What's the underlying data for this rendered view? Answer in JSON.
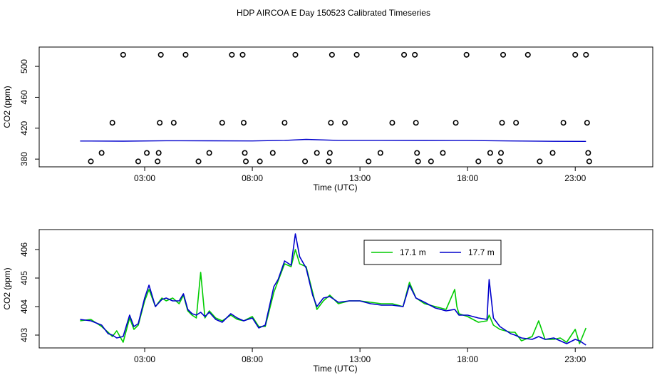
{
  "title": "HDP AIRCOA E  Day 150523  Calibrated Timeseries",
  "colors": {
    "green": "#00cc00",
    "blue": "#0000cc",
    "axis": "#000000"
  },
  "chart_data": [
    {
      "type": "scatter",
      "title": "",
      "xlabel": "Time (UTC)",
      "ylabel": "CO2 (ppm)",
      "xlim": [
        -1.9,
        26.6
      ],
      "ylim": [
        370,
        525
      ],
      "x_ticks": [
        3,
        8,
        13,
        18,
        23
      ],
      "x_tick_labels": [
        "03:00",
        "08:00",
        "13:00",
        "18:00",
        "23:00"
      ],
      "y_ticks": [
        380,
        420,
        460,
        500
      ],
      "y_tick_labels": [
        "380",
        "420",
        "460",
        "500"
      ],
      "series": [
        {
          "name": "flags",
          "marker": "circle-open",
          "points": [
            [
              0.5,
              377
            ],
            [
              1.0,
              388
            ],
            [
              1.5,
              427
            ],
            [
              2.0,
              515
            ],
            [
              2.7,
              377
            ],
            [
              3.1,
              388
            ],
            [
              3.6,
              377
            ],
            [
              3.65,
              388
            ],
            [
              3.7,
              427
            ],
            [
              3.75,
              515
            ],
            [
              4.35,
              427
            ],
            [
              4.9,
              515
            ],
            [
              5.5,
              377
            ],
            [
              6.0,
              388
            ],
            [
              6.6,
              427
            ],
            [
              7.05,
              515
            ],
            [
              7.55,
              515
            ],
            [
              7.6,
              427
            ],
            [
              7.65,
              388
            ],
            [
              7.7,
              377
            ],
            [
              8.35,
              377
            ],
            [
              8.95,
              388
            ],
            [
              9.5,
              427
            ],
            [
              10.0,
              515
            ],
            [
              10.45,
              377
            ],
            [
              11.0,
              388
            ],
            [
              11.55,
              377
            ],
            [
              11.6,
              388
            ],
            [
              11.65,
              427
            ],
            [
              11.7,
              515
            ],
            [
              12.3,
              427
            ],
            [
              12.85,
              515
            ],
            [
              13.4,
              377
            ],
            [
              13.95,
              388
            ],
            [
              14.5,
              427
            ],
            [
              15.05,
              515
            ],
            [
              15.55,
              515
            ],
            [
              15.6,
              427
            ],
            [
              15.65,
              388
            ],
            [
              15.7,
              377
            ],
            [
              16.3,
              377
            ],
            [
              16.85,
              388
            ],
            [
              17.45,
              427
            ],
            [
              17.95,
              515
            ],
            [
              18.5,
              377
            ],
            [
              19.05,
              388
            ],
            [
              19.5,
              377
            ],
            [
              19.55,
              388
            ],
            [
              19.6,
              427
            ],
            [
              19.65,
              515
            ],
            [
              20.25,
              427
            ],
            [
              20.8,
              515
            ],
            [
              21.35,
              377
            ],
            [
              21.95,
              388
            ],
            [
              22.45,
              427
            ],
            [
              23.0,
              515
            ],
            [
              23.5,
              515
            ],
            [
              23.55,
              427
            ],
            [
              23.6,
              388
            ],
            [
              23.65,
              377
            ]
          ]
        },
        {
          "name": "CO2 line",
          "color": "#0000cc",
          "x": [
            0,
            2,
            4,
            6,
            8,
            9.5,
            10.5,
            12,
            14,
            16,
            18,
            20,
            22,
            23.5
          ],
          "values": [
            403.4,
            403.2,
            403.8,
            403.7,
            403.5,
            404.2,
            405.5,
            404.2,
            404.2,
            404.1,
            404.0,
            403.5,
            403.0,
            402.9
          ]
        }
      ]
    },
    {
      "type": "line",
      "title": "",
      "xlabel": "Time (UTC)",
      "ylabel": "CO2 (ppm)",
      "xlim": [
        -1.9,
        26.6
      ],
      "ylim": [
        402.55,
        406.7
      ],
      "x_ticks": [
        3,
        8,
        13,
        18,
        23
      ],
      "x_tick_labels": [
        "03:00",
        "08:00",
        "13:00",
        "18:00",
        "23:00"
      ],
      "y_ticks": [
        403,
        404,
        405,
        406
      ],
      "y_tick_labels": [
        "403",
        "404",
        "405",
        "406"
      ],
      "legend": {
        "position": "top-center",
        "entries": [
          "17.1 m",
          "17.7 m"
        ]
      },
      "series": [
        {
          "name": "17.1 m",
          "color": "#00cc00",
          "x": [
            0,
            0.5,
            1.0,
            1.3,
            1.5,
            1.7,
            2.0,
            2.3,
            2.5,
            2.7,
            3.0,
            3.2,
            3.5,
            3.8,
            4.0,
            4.3,
            4.6,
            4.8,
            5.0,
            5.2,
            5.4,
            5.6,
            5.8,
            6.0,
            6.3,
            6.6,
            7.0,
            7.3,
            7.6,
            8.0,
            8.3,
            8.6,
            9.0,
            9.2,
            9.5,
            9.8,
            10.0,
            10.2,
            10.5,
            10.8,
            11.0,
            11.3,
            11.6,
            12.0,
            12.5,
            13.0,
            13.5,
            14.0,
            14.5,
            15.0,
            15.3,
            15.6,
            16.0,
            16.5,
            17.0,
            17.4,
            17.5,
            17.6,
            18.0,
            18.5,
            18.9,
            19.0,
            19.2,
            19.5,
            20.0,
            20.2,
            20.5,
            21.0,
            21.3,
            21.6,
            22.0,
            22.3,
            22.6,
            23.0,
            23.2,
            23.5
          ],
          "values": [
            403.5,
            403.55,
            403.3,
            403.1,
            402.95,
            403.15,
            402.75,
            403.6,
            403.2,
            403.35,
            404.2,
            404.6,
            404.0,
            404.3,
            404.2,
            404.3,
            404.1,
            404.4,
            403.85,
            403.7,
            403.6,
            405.2,
            403.6,
            403.85,
            403.6,
            403.5,
            403.7,
            403.55,
            403.5,
            403.65,
            403.3,
            403.3,
            404.5,
            404.9,
            405.5,
            405.4,
            406.0,
            405.5,
            405.4,
            404.5,
            403.9,
            404.2,
            404.4,
            404.1,
            404.2,
            404.2,
            404.15,
            404.1,
            404.1,
            404.0,
            404.85,
            404.3,
            404.1,
            404.0,
            403.9,
            404.6,
            404.0,
            403.75,
            403.65,
            403.45,
            403.5,
            403.7,
            403.35,
            403.2,
            403.1,
            403.1,
            402.8,
            402.95,
            403.5,
            402.85,
            402.85,
            402.9,
            402.75,
            403.2,
            402.7,
            403.25
          ]
        },
        {
          "name": "17.7 m",
          "color": "#0000cc",
          "x": [
            0,
            0.5,
            1.0,
            1.3,
            1.5,
            1.7,
            2.0,
            2.3,
            2.5,
            2.7,
            3.0,
            3.2,
            3.5,
            3.8,
            4.0,
            4.3,
            4.6,
            4.8,
            5.0,
            5.2,
            5.4,
            5.6,
            5.8,
            6.0,
            6.3,
            6.6,
            7.0,
            7.3,
            7.6,
            8.0,
            8.3,
            8.6,
            9.0,
            9.2,
            9.5,
            9.8,
            10.0,
            10.2,
            10.5,
            10.8,
            11.0,
            11.3,
            11.6,
            12.0,
            12.5,
            13.0,
            13.5,
            14.0,
            14.5,
            15.0,
            15.3,
            15.6,
            16.0,
            16.5,
            17.0,
            17.4,
            17.5,
            17.6,
            18.0,
            18.5,
            18.9,
            19.0,
            19.2,
            19.5,
            20.0,
            20.2,
            20.5,
            21.0,
            21.3,
            21.6,
            22.0,
            22.3,
            22.6,
            23.0,
            23.2,
            23.5
          ],
          "values": [
            403.55,
            403.5,
            403.35,
            403.05,
            403.0,
            402.9,
            402.95,
            403.7,
            403.3,
            403.4,
            404.3,
            404.75,
            404.0,
            404.25,
            404.3,
            404.2,
            404.2,
            404.45,
            403.9,
            403.75,
            403.7,
            403.8,
            403.65,
            403.8,
            403.55,
            403.45,
            403.75,
            403.6,
            403.5,
            403.6,
            403.25,
            403.35,
            404.7,
            404.95,
            405.6,
            405.45,
            406.55,
            405.75,
            405.35,
            404.4,
            404.0,
            404.3,
            404.35,
            404.15,
            404.2,
            404.2,
            404.1,
            404.05,
            404.05,
            404.0,
            404.75,
            404.3,
            404.15,
            403.95,
            403.85,
            403.9,
            403.8,
            403.7,
            403.7,
            403.6,
            403.55,
            404.95,
            403.6,
            403.3,
            403.05,
            403.0,
            402.9,
            402.85,
            402.95,
            402.85,
            402.9,
            402.8,
            402.7,
            402.85,
            402.8,
            402.65
          ]
        }
      ]
    }
  ]
}
